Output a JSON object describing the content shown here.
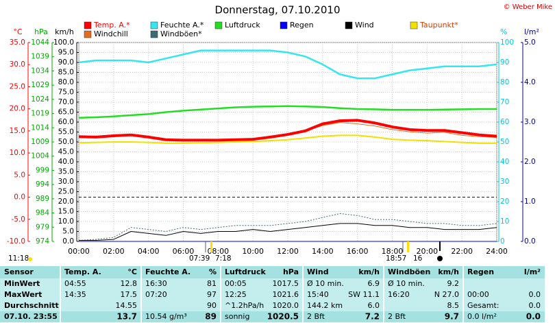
{
  "chart_data": {
    "type": "line",
    "title": "Donnerstag, 07.10.2010",
    "copyright": "© Weber Mike",
    "x": [
      0,
      1,
      2,
      3,
      4,
      5,
      6,
      7,
      8,
      9,
      10,
      11,
      12,
      13,
      14,
      15,
      16,
      17,
      18,
      19,
      20,
      21,
      22,
      23,
      24
    ],
    "xlim": [
      0,
      24
    ],
    "xticks": [
      {
        "value": 0,
        "label": "00:00"
      },
      {
        "value": 2,
        "label": "02:00"
      },
      {
        "value": 4,
        "label": "04:00"
      },
      {
        "value": 6,
        "label": "06:00"
      },
      {
        "value": 8,
        "label": "08:00"
      },
      {
        "value": 10,
        "label": "10:00"
      },
      {
        "value": 12,
        "label": "12:00"
      },
      {
        "value": 14,
        "label": "14:00"
      },
      {
        "value": 16,
        "label": "16:00"
      },
      {
        "value": 18,
        "label": "18:00"
      },
      {
        "value": 20,
        "label": "20:00"
      },
      {
        "value": 22,
        "label": "22:00"
      },
      {
        "value": 24,
        "label": "24:00"
      }
    ],
    "yaxes": [
      {
        "label": "°C",
        "color": "#ff0000",
        "lim": [
          -10,
          35
        ],
        "ticks": [
          {
            "value": 35,
            "label": "35.0"
          },
          {
            "value": 30,
            "label": "30.0"
          },
          {
            "value": 25,
            "label": "25.0"
          },
          {
            "value": 20,
            "label": "20.0"
          },
          {
            "value": 15,
            "label": "15.0"
          },
          {
            "value": 10,
            "label": "10.0"
          },
          {
            "value": 5,
            "label": "5.0"
          },
          {
            "value": 0,
            "label": "0.0"
          },
          {
            "value": -5,
            "label": "-5.0"
          },
          {
            "value": -10,
            "label": "-10.0"
          }
        ]
      },
      {
        "label": "hPa",
        "color": "#00aa00",
        "lim": [
          974,
          1044
        ],
        "ticks": [
          1044,
          1039,
          1034,
          1029,
          1024,
          1019,
          1014,
          1009,
          1004,
          999,
          994,
          989,
          984,
          979,
          974
        ]
      },
      {
        "label": "km/h",
        "color": "#000000",
        "grid": true,
        "lim": [
          0,
          100
        ],
        "ticks": [
          {
            "value": 100,
            "label": "100.0"
          },
          {
            "value": 95,
            "label": "95.0"
          },
          {
            "value": 90,
            "label": "90.0"
          },
          {
            "value": 85,
            "label": "85.0"
          },
          {
            "value": 80,
            "label": "80.0"
          },
          {
            "value": 75,
            "label": "75.0"
          },
          {
            "value": 70,
            "label": "70.0"
          },
          {
            "value": 65,
            "label": "65.0"
          },
          {
            "value": 60,
            "label": "60.0"
          },
          {
            "value": 55,
            "label": "55.0"
          },
          {
            "value": 50,
            "label": "50.0"
          },
          {
            "value": 45,
            "label": "45.0"
          },
          {
            "value": 40,
            "label": "40.0"
          },
          {
            "value": 35,
            "label": "35.0"
          },
          {
            "value": 30,
            "label": "30.0"
          },
          {
            "value": 25,
            "label": "25.0"
          },
          {
            "value": 20,
            "label": "20.0"
          },
          {
            "value": 15,
            "label": "15.0"
          },
          {
            "value": 10,
            "label": "10.0"
          },
          {
            "value": 5,
            "label": "5.0"
          },
          {
            "value": 0,
            "label": "0.0"
          }
        ]
      },
      {
        "label": "%",
        "color": "#00c8d8",
        "lim": [
          0,
          100
        ],
        "ticks": [
          100,
          90,
          80,
          70,
          60,
          50,
          40,
          30,
          20,
          10,
          0
        ]
      },
      {
        "label": "l/m²",
        "color": "#000088",
        "lim": [
          0,
          5
        ],
        "ticks": [
          {
            "value": 5,
            "label": "5.0"
          },
          {
            "value": 4,
            "label": "4.0"
          },
          {
            "value": 3,
            "label": "3.0"
          },
          {
            "value": 2,
            "label": "2.0"
          },
          {
            "value": 1,
            "label": "1.0"
          },
          {
            "value": 0,
            "label": "0.0"
          }
        ]
      }
    ],
    "reference_lines": [
      {
        "axis": 0,
        "value": 0,
        "color": "#0000cc"
      }
    ],
    "series": [
      {
        "name": "Temp. A.*",
        "color": "#ff0000",
        "axis": 0,
        "width": 4,
        "values": [
          13.7,
          13.6,
          13.9,
          14.1,
          13.6,
          13.0,
          12.9,
          12.9,
          12.9,
          13.0,
          13.1,
          13.6,
          14.2,
          15.0,
          16.6,
          17.3,
          17.4,
          16.8,
          15.9,
          15.3,
          15.1,
          15.1,
          14.6,
          14.1,
          13.8
        ]
      },
      {
        "name": "Feuchte A.*",
        "color": "#33e6f0",
        "axis": 3,
        "width": 2.5,
        "values": [
          90,
          91,
          91,
          91,
          90,
          92,
          94,
          96,
          96,
          96,
          96,
          96,
          95,
          93,
          89,
          84,
          82,
          82,
          84,
          86,
          87,
          88,
          88,
          88,
          89
        ]
      },
      {
        "name": "Luftdruck",
        "color": "#22dd22",
        "axis": 1,
        "width": 2.5,
        "values": [
          1017.5,
          1017.7,
          1018,
          1018.4,
          1018.8,
          1019.5,
          1020,
          1020.4,
          1020.8,
          1021.2,
          1021.4,
          1021.5,
          1021.6,
          1021.5,
          1021.3,
          1020.9,
          1020.6,
          1020.5,
          1020.3,
          1020.3,
          1020.3,
          1020.4,
          1020.5,
          1020.6,
          1020.6
        ]
      },
      {
        "name": "Regen",
        "color": "#0000ff",
        "axis": 4,
        "width": 1,
        "values": [
          0,
          0,
          0,
          0,
          0,
          0,
          0,
          0,
          0,
          0,
          0,
          0,
          0,
          0,
          0,
          0,
          0,
          0,
          0,
          0,
          0,
          0,
          0,
          0,
          0
        ]
      },
      {
        "name": "Wind",
        "color": "#000000",
        "axis": 2,
        "width": 1,
        "values": [
          0.5,
          0.5,
          1,
          5,
          4,
          3,
          5,
          4,
          5,
          5,
          6,
          5,
          6,
          7,
          8,
          9,
          9,
          8,
          8,
          7,
          7,
          6,
          6,
          6,
          7
        ]
      },
      {
        "name": "Taupunkt*",
        "color": "#f0e000",
        "axis": 0,
        "width": 2,
        "values": [
          12.3,
          12.4,
          12.5,
          12.5,
          12.4,
          12.2,
          12.2,
          12.3,
          12.4,
          12.5,
          12.6,
          12.8,
          13.0,
          13.4,
          13.8,
          14.0,
          14.0,
          13.6,
          13.1,
          12.9,
          12.8,
          12.6,
          12.4,
          12.2,
          12.2
        ]
      },
      {
        "name": "Windchill",
        "color": "#e07020",
        "axis": 0,
        "width": 1,
        "values": [
          13.7,
          13.6,
          13.9,
          14.1,
          13.6,
          13.0,
          12.9,
          12.9,
          12.9,
          13.0,
          13.1,
          13.6,
          14.2,
          15.0,
          16.2,
          16.9,
          16.6,
          16.1,
          15.3,
          14.8,
          14.5,
          14.7,
          14.0,
          13.7,
          13.5
        ]
      },
      {
        "name": "Windböen*",
        "color": "#3d6b73",
        "axis": 2,
        "width": 1,
        "dash": true,
        "values": [
          0.5,
          1,
          2,
          7,
          6,
          5,
          7,
          6,
          7,
          8,
          8,
          8,
          9,
          10,
          12,
          14,
          13,
          11,
          11,
          10,
          9,
          9,
          8,
          8,
          9
        ]
      }
    ],
    "astro_labels": [
      "11:18",
      "07:39",
      "7:18",
      "18:57",
      "16"
    ]
  },
  "table": {
    "columns": [
      {
        "title": "Sensor"
      },
      {
        "title": "Temp. A.",
        "unit": "°C"
      },
      {
        "title": "Feuchte A.",
        "unit": "%"
      },
      {
        "title": "Luftdruck",
        "unit": "hPa"
      },
      {
        "title": "Wind",
        "unit": "km/h"
      },
      {
        "title": "Windböen",
        "unit": "km/h"
      },
      {
        "title": "Regen",
        "unit": "l/m²"
      }
    ],
    "rows": [
      {
        "label": "MinWert",
        "cells": [
          {
            "l": "04:55",
            "r": "12.8"
          },
          {
            "l": "16:30",
            "r": "81"
          },
          {
            "l": "00:05",
            "r": "1017.5"
          },
          {
            "l": "Ø 10 min.",
            "r": "6.9"
          },
          {
            "l": "Ø 10 min.",
            "r": "9.2"
          },
          {}
        ]
      },
      {
        "label": "MaxWert",
        "cells": [
          {
            "l": "14:35",
            "r": "17.5"
          },
          {
            "l": "07:20",
            "r": "97"
          },
          {
            "l": "12:25",
            "r": "1021.6"
          },
          {
            "l": "15:40",
            "r": "SW 11.1"
          },
          {
            "l": "16:20",
            "r": "N 27.0"
          },
          {
            "l": "00:00",
            "r": "0.0"
          }
        ]
      },
      {
        "label": "Durchschnitt",
        "cells": [
          {
            "r": "14.55"
          },
          {
            "r": "90"
          },
          {
            "l": "^1.2hPa/h",
            "r": "1020.0"
          },
          {
            "l": "144.2 km",
            "r": "6.0"
          },
          {
            "r": "8.5"
          },
          {
            "l": "Gesamt:",
            "r": "0.0"
          }
        ]
      },
      {
        "label": "07.10. 23:55",
        "cells": [
          {
            "r": "13.7"
          },
          {
            "l": "10.54 g/m³",
            "r": "89"
          },
          {
            "l": "sonnig",
            "r": "1020.5"
          },
          {
            "l": "2 Bft",
            "r": "7.2"
          },
          {
            "l": "2 Bft",
            "r": "9.7"
          },
          {
            "l": "0.0 l/m²",
            "r": "0.0"
          }
        ]
      }
    ]
  }
}
